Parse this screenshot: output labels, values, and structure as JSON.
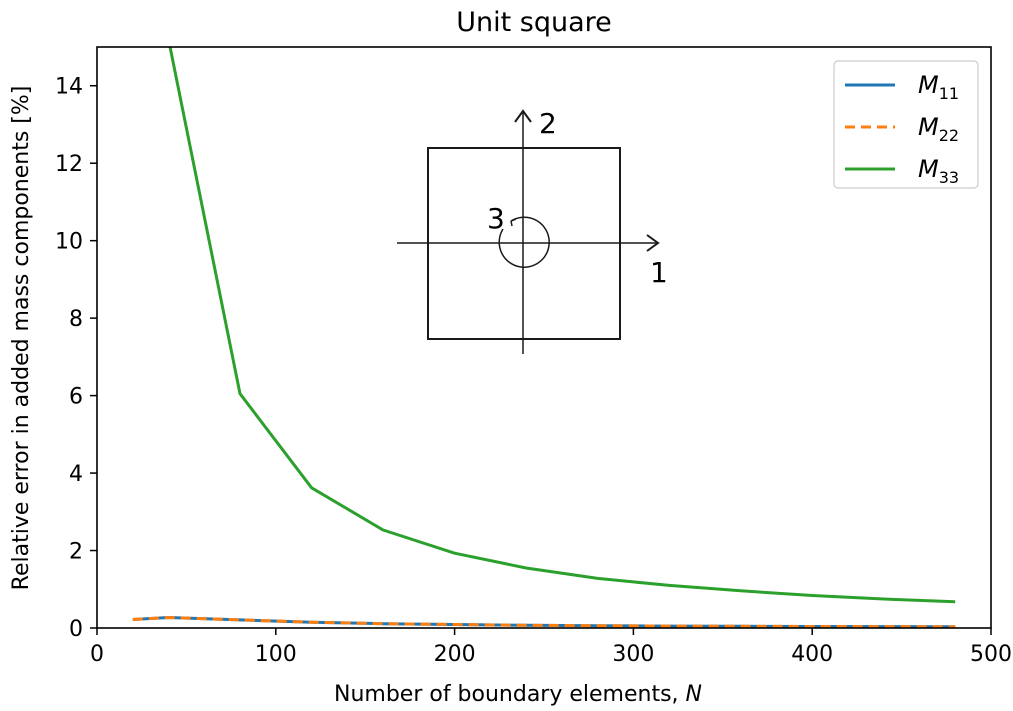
{
  "colors": {
    "m11": "#1f77b4",
    "m22": "#ff7f0e",
    "m33": "#2ca02c",
    "axis": "#000000",
    "inset": "#1a1a1a"
  },
  "chart_data": {
    "type": "line",
    "title": "Unit square",
    "xlabel": "Number of boundary elements, ",
    "xlabel_var": "N",
    "ylabel": "Relative error in added mass components [%]",
    "xlim": [
      0,
      500
    ],
    "ylim": [
      0,
      15
    ],
    "xticks": [
      0,
      100,
      200,
      300,
      400,
      500
    ],
    "yticks": [
      0,
      2,
      4,
      6,
      8,
      10,
      12,
      14
    ],
    "grid": false,
    "legend_position": "top-right",
    "x": [
      20,
      40,
      80,
      120,
      160,
      200,
      240,
      280,
      320,
      360,
      400,
      440,
      480
    ],
    "series": [
      {
        "key": "m11",
        "name": "M",
        "subscript": "11",
        "style": "solid",
        "values": [
          0.22,
          0.27,
          0.21,
          0.15,
          0.11,
          0.09,
          0.07,
          0.06,
          0.05,
          0.045,
          0.04,
          0.035,
          0.03
        ]
      },
      {
        "key": "m22",
        "name": "M",
        "subscript": "22",
        "style": "dashed",
        "values": [
          0.22,
          0.27,
          0.21,
          0.15,
          0.11,
          0.09,
          0.07,
          0.06,
          0.05,
          0.045,
          0.04,
          0.035,
          0.03
        ]
      },
      {
        "key": "m33",
        "name": "M",
        "subscript": "33",
        "style": "solid",
        "values": [
          null,
          15.2,
          6.05,
          3.62,
          2.53,
          1.93,
          1.55,
          1.28,
          1.1,
          0.96,
          0.84,
          0.75,
          0.68
        ]
      }
    ],
    "inset": {
      "axis_1": "1",
      "axis_2": "2",
      "axis_3": "3"
    }
  }
}
